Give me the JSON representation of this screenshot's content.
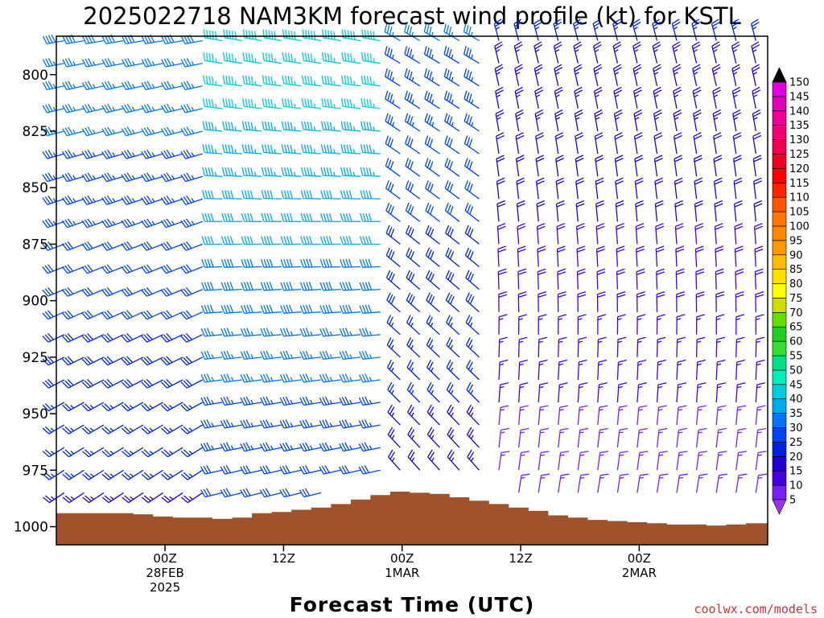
{
  "page": {
    "title": "2025022718 NAM3KM forecast wind profile (kt) for KSTL",
    "credit": "coolwx.com/models"
  },
  "chart_data": {
    "type": "wind-barb time-height profile",
    "title": "2025022718 NAM3KM forecast wind profile (kt) for KSTL",
    "xlabel": "Forecast Time (UTC)",
    "ylabel": "",
    "units": "kt",
    "y_axis": {
      "scale": "pressure (hPa), inverted",
      "range": [
        1008,
        783
      ],
      "ticks": [
        800,
        825,
        850,
        875,
        900,
        925,
        950,
        975,
        1000
      ]
    },
    "x_axis": {
      "range_hours": [
        -11,
        61
      ],
      "ticks": [
        {
          "hour": 0,
          "lines": [
            "00Z",
            "28FEB",
            "2025"
          ]
        },
        {
          "hour": 12,
          "lines": [
            "12Z"
          ]
        },
        {
          "hour": 24,
          "lines": [
            "00Z",
            "1MAR"
          ]
        },
        {
          "hour": 36,
          "lines": [
            "12Z"
          ]
        },
        {
          "hour": 48,
          "lines": [
            "00Z",
            "2MAR"
          ]
        }
      ]
    },
    "surface_pressure": {
      "hours": [
        -10.2,
        -8.2,
        -6.2,
        -4.2,
        -2.2,
        -0.2,
        1.8,
        3.8,
        5.8,
        7.8,
        9.8,
        11.8,
        13.8,
        15.8,
        17.8,
        19.8,
        21.8,
        23.8,
        25.8,
        27.8,
        29.8,
        31.8,
        33.8,
        35.8,
        37.8,
        39.8,
        41.8,
        43.8,
        45.8,
        47.8,
        49.8,
        51.8,
        53.8,
        55.8,
        57.8,
        59.8
      ],
      "hPa": [
        994,
        994,
        994,
        994,
        994.5,
        995.5,
        996,
        996,
        996.5,
        996,
        994,
        993.5,
        992.5,
        991.5,
        990,
        988,
        986,
        984.5,
        985,
        985.5,
        987,
        988.5,
        990,
        991.5,
        993,
        995,
        996,
        997,
        997.5,
        998,
        998.5,
        999,
        999,
        999.5,
        999,
        998.5
      ]
    },
    "barb_grid": {
      "hours": [
        -10.2,
        -8.2,
        -6.2,
        -4.2,
        -2.2,
        -0.2,
        1.8,
        3.8,
        5.8,
        7.8,
        9.8,
        11.8,
        13.8,
        15.8,
        17.8,
        19.8,
        21.8,
        23.8,
        25.8,
        27.8,
        29.8,
        31.8,
        33.8,
        35.8,
        37.8,
        39.8,
        41.8,
        43.8,
        45.8,
        47.8,
        49.8,
        51.8,
        53.8,
        55.8,
        57.8,
        59.8
      ],
      "levels_hPa": [
        785,
        795,
        805,
        815,
        825,
        835,
        845,
        855,
        865,
        875,
        885,
        895,
        905,
        915,
        925,
        935,
        945,
        955,
        965,
        975,
        985,
        995
      ]
    },
    "wind_phases": [
      {
        "hours": [
          -11,
          4
        ],
        "direction_deg_top": 260,
        "direction_deg_bottom": 235,
        "speed_kt_top": 38,
        "speed_kt_bottom": 24
      },
      {
        "hours": [
          4,
          22
        ],
        "direction_deg_top": 280,
        "direction_deg_bottom": 255,
        "speed_kt_top": 48,
        "speed_kt_bottom": 30
      },
      {
        "hours": [
          22,
          32
        ],
        "direction_deg_top": 300,
        "direction_deg_bottom": 320,
        "speed_kt_top": 35,
        "speed_kt_bottom": 22
      },
      {
        "hours": [
          32,
          61
        ],
        "direction_deg_top": 345,
        "direction_deg_bottom": 10,
        "speed_kt_top": 25,
        "speed_kt_bottom": 12
      }
    ],
    "colorbar": {
      "values": [
        5,
        10,
        15,
        20,
        25,
        30,
        35,
        40,
        45,
        50,
        55,
        60,
        65,
        70,
        75,
        80,
        85,
        90,
        95,
        100,
        105,
        110,
        115,
        120,
        125,
        130,
        135,
        140,
        145,
        150
      ],
      "colors": [
        "#9933ee",
        "#7722ee",
        "#4400dd",
        "#2200cc",
        "#0022dd",
        "#0044ee",
        "#0077ee",
        "#00aaee",
        "#00ccdd",
        "#00eebb",
        "#00dd88",
        "#33dd33",
        "#22cc22",
        "#66dd00",
        "#ccdd00",
        "#ffff00",
        "#ffdd00",
        "#ffbb00",
        "#ff9900",
        "#ff8800",
        "#ff7700",
        "#ff5500",
        "#ff2200",
        "#ff0000",
        "#ee0022",
        "#ee0055",
        "#ee0077",
        "#ee0099",
        "#dd00bb",
        "#dd00dd"
      ],
      "top_arrow_color": "#000000",
      "bottom_arrow_color": "#9933ee"
    },
    "colors": {
      "terrain": "#a0522d",
      "frame": "#000000"
    }
  }
}
